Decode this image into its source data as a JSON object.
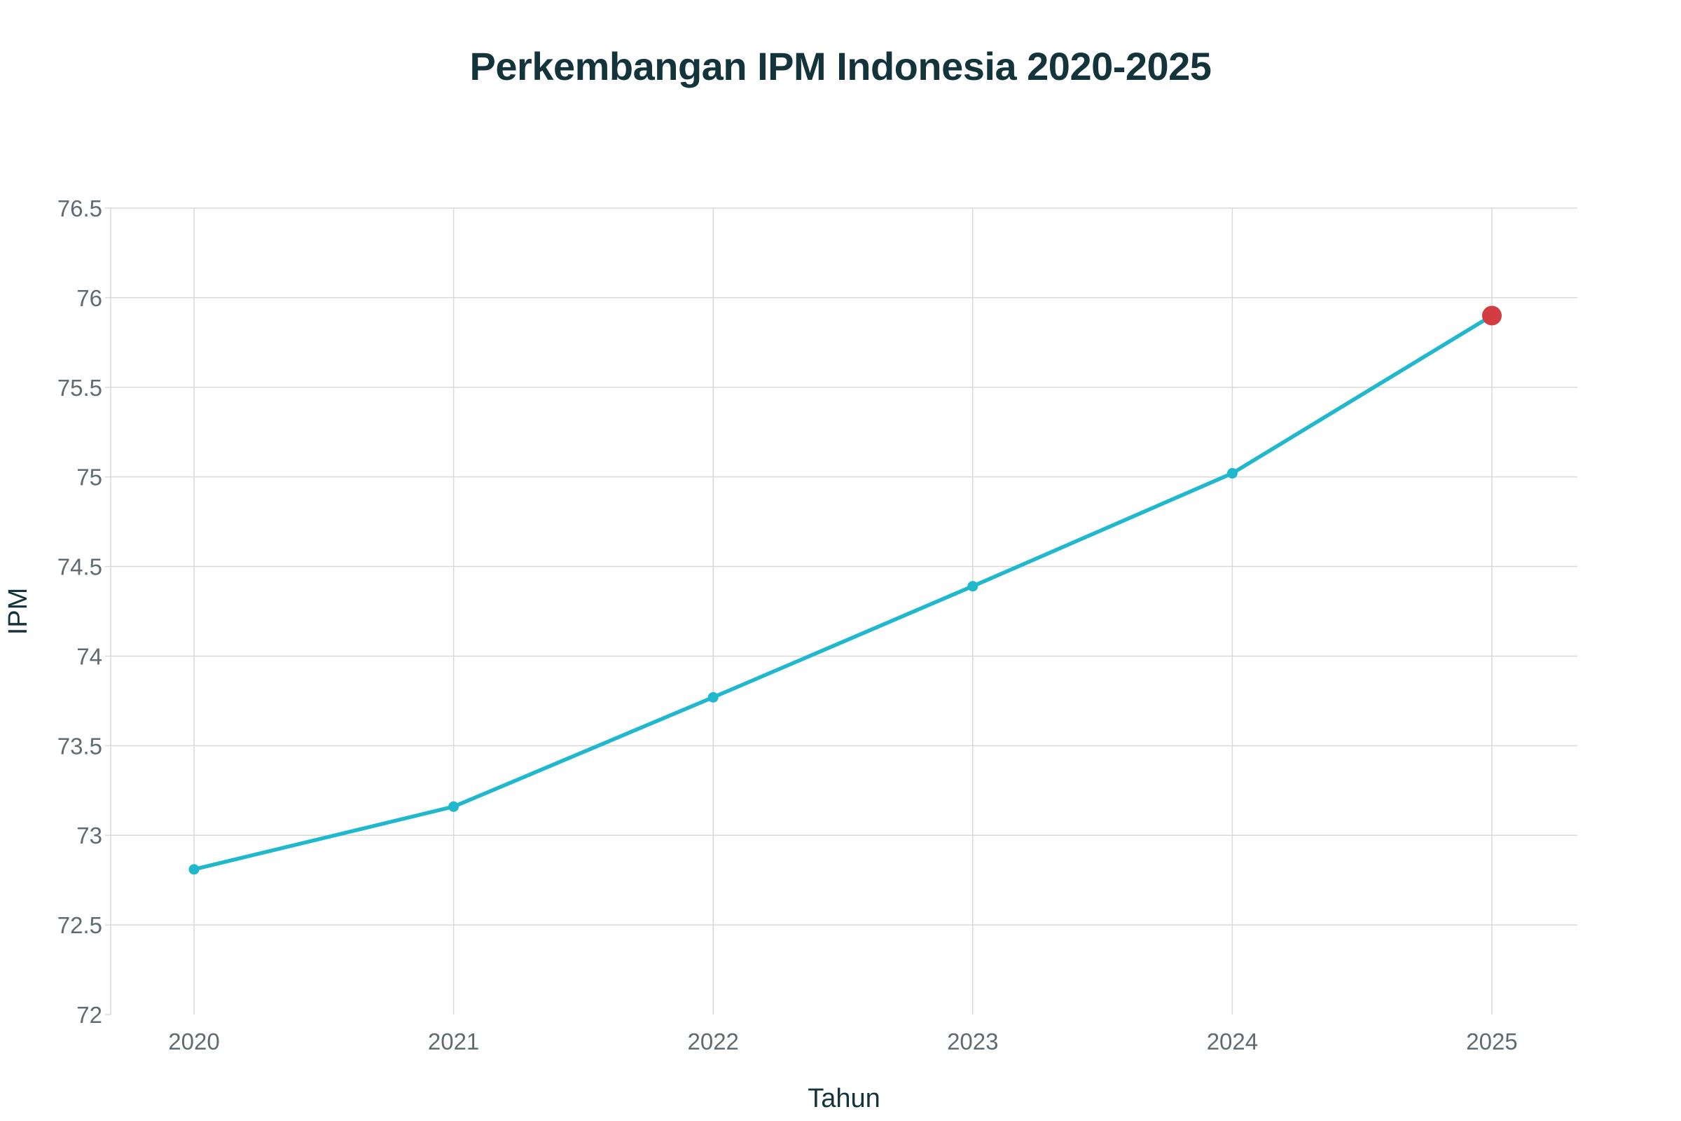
{
  "chart_data": {
    "type": "line",
    "title": "Perkembangan IPM Indonesia 2020-2025",
    "xlabel": "Tahun",
    "ylabel": "IPM",
    "categories": [
      "2020",
      "2021",
      "2022",
      "2023",
      "2024",
      "2025"
    ],
    "x": [
      2020,
      2021,
      2022,
      2023,
      2024,
      2025
    ],
    "series": [
      {
        "values": [
          72.81,
          73.16,
          73.77,
          74.39,
          75.02,
          75.9
        ]
      }
    ],
    "highlight": {
      "x": 2025,
      "y": 75.9,
      "color": "#d13d41"
    },
    "ylim": [
      72,
      76.5
    ],
    "yticks": [
      "72",
      "72.5",
      "73",
      "73.5",
      "74",
      "74.5",
      "75",
      "75.5",
      "76",
      "76.5"
    ],
    "xticks": [
      "2020",
      "2021",
      "2022",
      "2023",
      "2024",
      "2025"
    ],
    "grid": true,
    "colors": {
      "line": "#1fb8cd",
      "highlight": "#d13d41",
      "grid": "#d9d9d9",
      "text": "#13343b",
      "tick_text": "#5f6b70"
    }
  }
}
